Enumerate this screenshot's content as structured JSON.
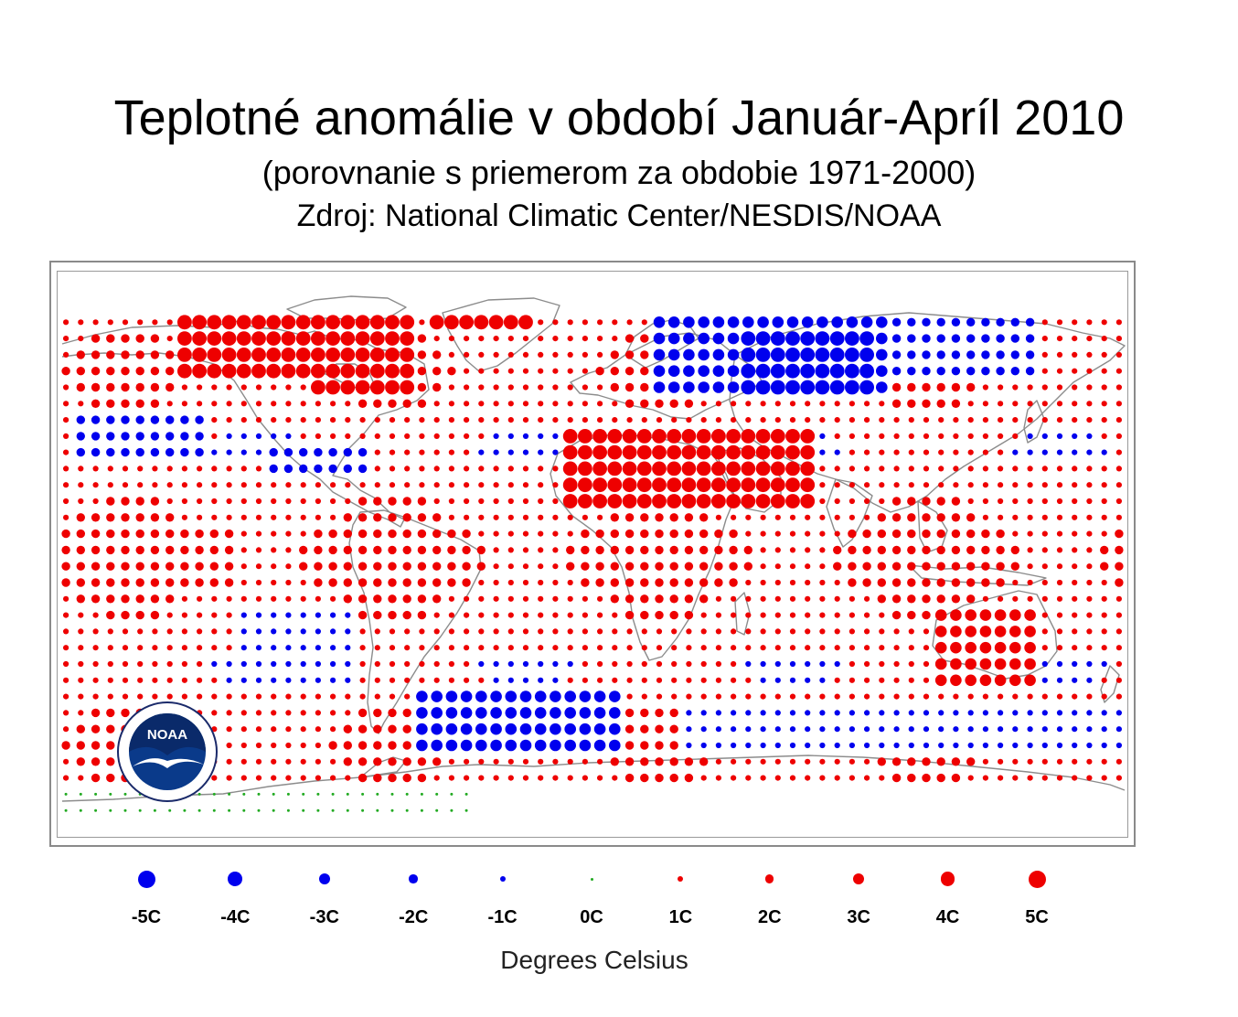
{
  "header": {
    "title": "Teplotné anomálie v období Január-Apríl 2010",
    "subtitle": "(porovnanie s priemerom za obdobie 1971-2000)",
    "source": "Zdroj: National Climatic Center/NESDIS/NOAA"
  },
  "logo": {
    "text": "NOAA",
    "icon": "noaa-seagull-logo"
  },
  "colors": {
    "negative": "#0000ee",
    "zero": "#22aa22",
    "positive": "#ee0000",
    "coastline": "#8c8c8c"
  },
  "legend": {
    "title": "Degrees Celsius",
    "items": [
      {
        "label": "-5C",
        "value": -5
      },
      {
        "label": "-4C",
        "value": -4
      },
      {
        "label": "-3C",
        "value": -3
      },
      {
        "label": "-2C",
        "value": -2
      },
      {
        "label": "-1C",
        "value": -1
      },
      {
        "label": "0C",
        "value": 0
      },
      {
        "label": "1C",
        "value": 1
      },
      {
        "label": "2C",
        "value": 2
      },
      {
        "label": "3C",
        "value": 3
      },
      {
        "label": "4C",
        "value": 4
      },
      {
        "label": "5C",
        "value": 5
      }
    ]
  },
  "map_data": {
    "type": "gridded-anomaly-map",
    "period": "Január-Apríl 2010",
    "baseline": "1971-2000",
    "unit": "Degrees Celsius",
    "grid": {
      "lon_min": -180,
      "lon_max": 180,
      "lat_min": -90,
      "lat_max": 90,
      "lon_step": 5,
      "lat_step": 5
    },
    "anomaly_regions": [
      {
        "region": "Northern Canada / Arctic Canada",
        "lon": [
          -140,
          -60
        ],
        "lat": [
          55,
          80
        ],
        "anomaly": 4
      },
      {
        "region": "Greenland",
        "lon": [
          -55,
          -20
        ],
        "lat": [
          70,
          85
        ],
        "anomaly": 4
      },
      {
        "region": "Eastern Canada / Hudson Bay",
        "lon": [
          -95,
          -60
        ],
        "lat": [
          48,
          62
        ],
        "anomaly": 4
      },
      {
        "region": "Southern USA / Gulf",
        "lon": [
          -110,
          -75
        ],
        "lat": [
          25,
          37
        ],
        "anomaly": -2
      },
      {
        "region": "North Pacific",
        "lon": [
          -175,
          -130
        ],
        "lat": [
          30,
          45
        ],
        "anomaly": -2
      },
      {
        "region": "Northern Eurasia / Siberia",
        "lon": [
          20,
          100
        ],
        "lat": [
          50,
          75
        ],
        "anomaly": -3
      },
      {
        "region": "Central Siberia core",
        "lon": [
          50,
          95
        ],
        "lat": [
          52,
          68
        ],
        "anomaly": -4
      },
      {
        "region": "East Siberia",
        "lon": [
          100,
          150
        ],
        "lat": [
          55,
          75
        ],
        "anomaly": -2
      },
      {
        "region": "Arctic Russia coast",
        "lon": [
          70,
          125
        ],
        "lat": [
          75,
          85
        ],
        "anomaly": 4
      },
      {
        "region": "North Africa / Middle East",
        "lon": [
          -10,
          75
        ],
        "lat": [
          15,
          40
        ],
        "anomaly": 4
      },
      {
        "region": "Central Africa",
        "lon": [
          10,
          40
        ],
        "lat": [
          -15,
          10
        ],
        "anomaly": 2
      },
      {
        "region": "Tropical Pacific",
        "lon": [
          -180,
          -120
        ],
        "lat": [
          -10,
          10
        ],
        "anomaly": 2
      },
      {
        "region": "Southeast Pacific",
        "lon": [
          -120,
          -80
        ],
        "lat": [
          -40,
          -15
        ],
        "anomaly": -1
      },
      {
        "region": "South Atlantic",
        "lon": [
          -60,
          10
        ],
        "lat": [
          -60,
          -40
        ],
        "anomaly": -3
      },
      {
        "region": "Australia",
        "lon": [
          115,
          150
        ],
        "lat": [
          -40,
          -15
        ],
        "anomaly": 3
      },
      {
        "region": "Southern Ocean",
        "lon": [
          30,
          180
        ],
        "lat": [
          -60,
          -45
        ],
        "anomaly": -1
      }
    ]
  }
}
